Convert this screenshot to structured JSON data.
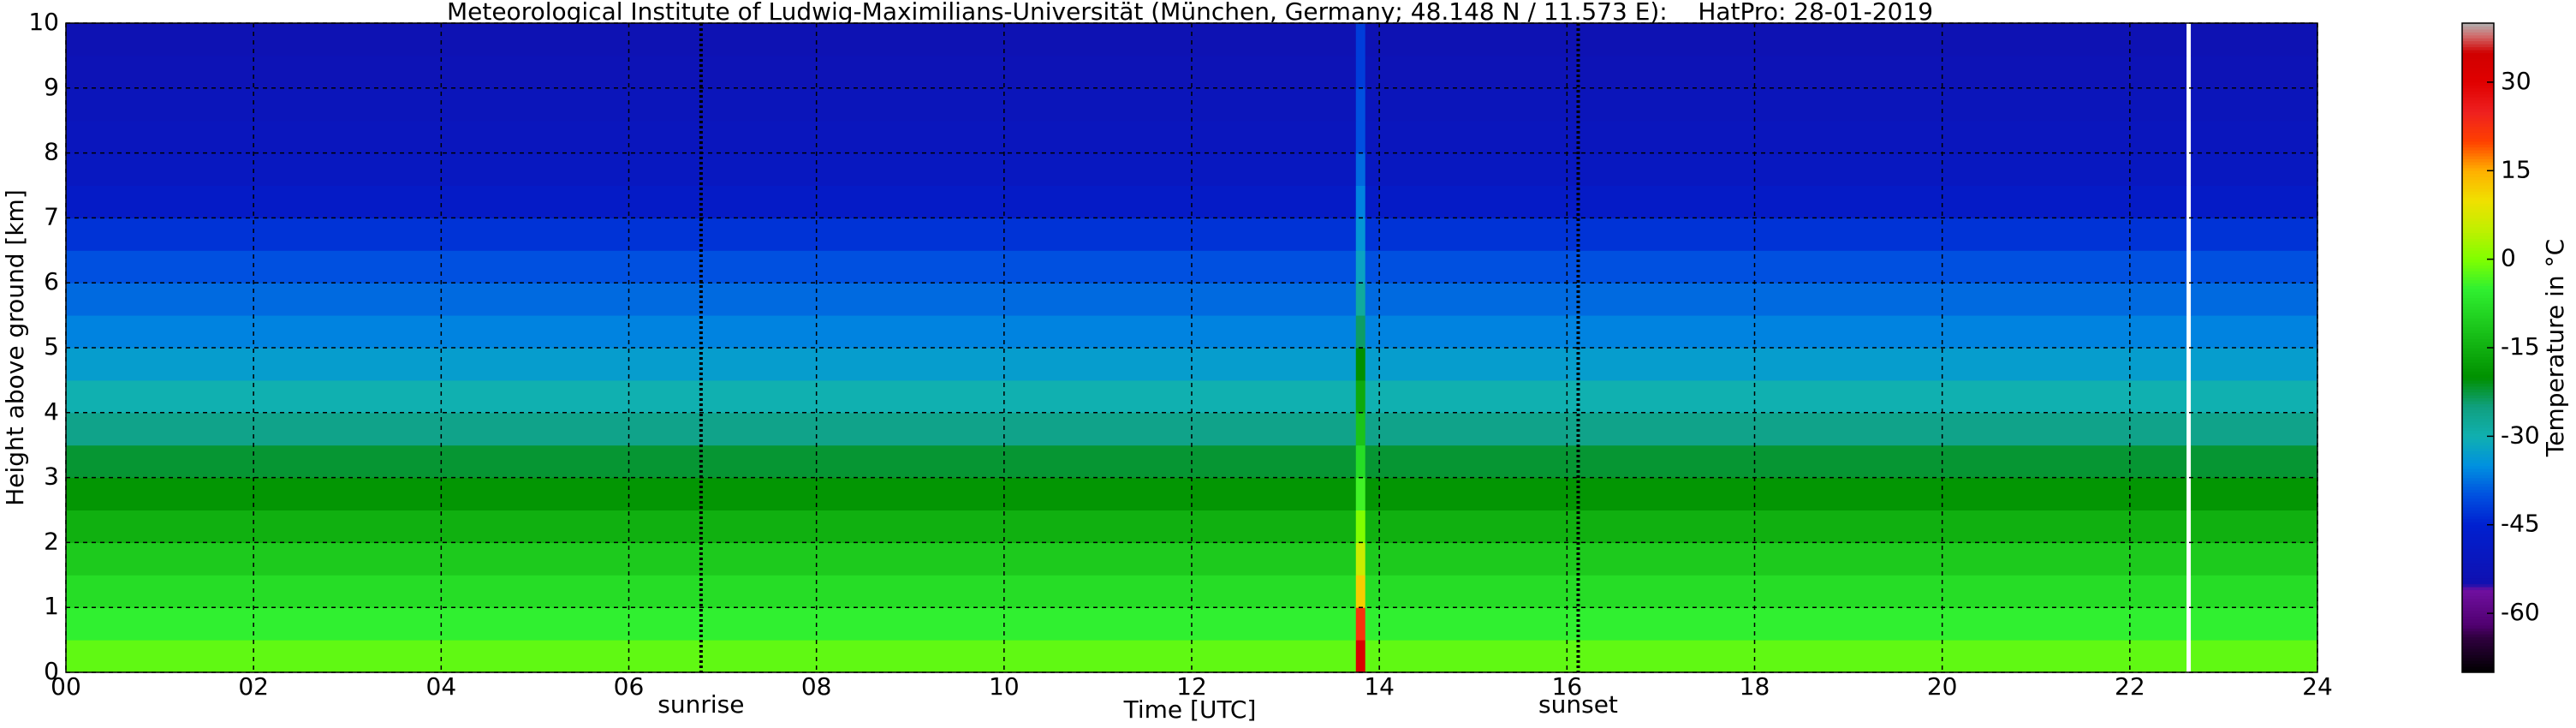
{
  "chart_data": {
    "type": "heatmap",
    "title": "Meteorological Institute of Ludwig-Maximilians-Universität (München, Germany; 48.148 N / 11.573 E):    HatPro: 28-01-2019",
    "xlabel": "Time [UTC]",
    "ylabel": "Height above ground [km]",
    "xlim": [
      0,
      24
    ],
    "ylim": [
      0,
      10
    ],
    "xticks": [
      {
        "value": 0,
        "label": "00"
      },
      {
        "value": 2,
        "label": "02"
      },
      {
        "value": 4,
        "label": "04"
      },
      {
        "value": 6,
        "label": "06"
      },
      {
        "value": 8,
        "label": "08"
      },
      10,
      12,
      14,
      16,
      18,
      20,
      22,
      24
    ],
    "yticks": [
      0,
      1,
      2,
      3,
      4,
      5,
      6,
      7,
      8,
      9,
      10
    ],
    "grid": true,
    "x_edges": [
      0,
      13.75,
      13.85,
      22.6,
      22.65,
      24
    ],
    "y_edges": [
      0,
      0.5,
      1,
      1.5,
      2,
      2.5,
      3,
      3.5,
      4,
      4.5,
      5,
      5.5,
      6,
      6.5,
      7,
      7.5,
      8,
      8.5,
      9,
      9.5,
      10
    ],
    "z": [
      [
        -2,
        32,
        -2,
        null,
        -2
      ],
      [
        -5,
        22,
        -5,
        null,
        -5
      ],
      [
        -8,
        12,
        -8,
        null,
        -8
      ],
      [
        -11,
        6,
        -11,
        null,
        -11
      ],
      [
        -15,
        0,
        -15,
        null,
        -15
      ],
      [
        -19,
        -4,
        -19,
        null,
        -19
      ],
      [
        -22,
        -8,
        -22,
        null,
        -22
      ],
      [
        -26,
        -12,
        -26,
        null,
        -26
      ],
      [
        -30,
        -16,
        -30,
        null,
        -30
      ],
      [
        -33,
        -20,
        -33,
        null,
        -33
      ],
      [
        -36,
        -24,
        -36,
        null,
        -36
      ],
      [
        -38,
        -28,
        -38,
        null,
        -38
      ],
      [
        -40,
        -32,
        -40,
        null,
        -40
      ],
      [
        -43,
        -34,
        -43,
        null,
        -43
      ],
      [
        -48,
        -36,
        -48,
        null,
        -48
      ],
      [
        -50,
        -38,
        -50,
        null,
        -50
      ],
      [
        -51,
        -40,
        -51,
        null,
        -51
      ],
      [
        -52,
        -40,
        -52,
        null,
        -52
      ],
      [
        -53,
        -42,
        -53,
        null,
        -53
      ],
      [
        -54,
        -42,
        -54,
        null,
        -54
      ]
    ],
    "annotations": [
      {
        "text": "sunrise",
        "x": 6.77
      },
      {
        "text": "sunset",
        "x": 16.12
      }
    ],
    "colorbar": {
      "label": "Temperature in °C",
      "clim": [
        -70,
        40
      ],
      "ticks": [
        -60,
        -45,
        -30,
        -15,
        0,
        15,
        30
      ]
    },
    "colorscale": [
      [
        -70,
        "#000000"
      ],
      [
        -64,
        "#300040"
      ],
      [
        -62,
        "#500070"
      ],
      [
        -56,
        "#7010a0"
      ],
      [
        -55,
        "#1010b0"
      ],
      [
        -45,
        "#0020d0"
      ],
      [
        -40,
        "#0050e0"
      ],
      [
        -35,
        "#0090e0"
      ],
      [
        -30,
        "#10b0b0"
      ],
      [
        -25,
        "#10a080"
      ],
      [
        -20,
        "#009000"
      ],
      [
        -15,
        "#10b010"
      ],
      [
        -10,
        "#20d020"
      ],
      [
        -5,
        "#30f030"
      ],
      [
        0,
        "#80ff00"
      ],
      [
        5,
        "#c0f000"
      ],
      [
        10,
        "#f0e000"
      ],
      [
        15,
        "#ffb000"
      ],
      [
        20,
        "#ff4000"
      ],
      [
        25,
        "#ee2020"
      ],
      [
        30,
        "#e00000"
      ],
      [
        35,
        "#d00000"
      ],
      [
        38,
        "#d07070"
      ],
      [
        40,
        "#b0b0b0"
      ]
    ]
  }
}
